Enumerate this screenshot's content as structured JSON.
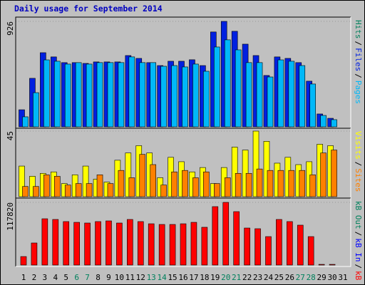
{
  "title": "Daily usage for September 2014",
  "separator": "/",
  "chart_data": [
    {
      "type": "bar",
      "ylim": [
        0,
        926
      ],
      "yticks": [
        926
      ],
      "extra_legend": [
        {
          "name": "Hits",
          "color": "#00805c"
        }
      ],
      "series": [
        {
          "name": "Files",
          "color": "#0020e0",
          "values": [
            150,
            426,
            651,
            614,
            564,
            564,
            557,
            570,
            570,
            570,
            626,
            601,
            564,
            538,
            576,
            576,
            589,
            538,
            833,
            926,
            839,
            726,
            626,
            451,
            614,
            601,
            564,
            401,
            113,
            75,
            0
          ]
        },
        {
          "name": "Pages",
          "color": "#00b8f8",
          "values": [
            88,
            300,
            588,
            576,
            551,
            564,
            551,
            564,
            564,
            564,
            614,
            564,
            564,
            532,
            538,
            526,
            551,
            488,
            701,
            764,
            676,
            564,
            564,
            438,
            588,
            576,
            538,
            376,
            100,
            63,
            0
          ]
        }
      ]
    },
    {
      "type": "bar",
      "ylim": [
        0,
        45
      ],
      "yticks": [
        45
      ],
      "extra_legend": [],
      "series": [
        {
          "name": "Visits",
          "color": "#ffff00",
          "values": [
            21,
            14,
            16,
            17,
            9,
            15,
            21,
            12,
            10,
            25,
            30,
            35,
            30,
            13,
            27,
            24,
            17,
            20,
            9,
            20,
            34,
            32,
            45,
            38,
            23,
            27,
            22,
            24,
            36,
            35,
            0
          ]
        },
        {
          "name": "Sites",
          "color": "#ff8000",
          "values": [
            7,
            7,
            15,
            14,
            8,
            9,
            9,
            15,
            9,
            18,
            13,
            29,
            22,
            8,
            17,
            18,
            13,
            17,
            9,
            13,
            16,
            16,
            19,
            18,
            18,
            18,
            18,
            15,
            30,
            32,
            0
          ]
        }
      ]
    },
    {
      "type": "bar",
      "ylim": [
        0,
        117820
      ],
      "yticks": [
        117820
      ],
      "extra_legend": [
        {
          "name": "kB Out",
          "color": "#00805c"
        },
        {
          "name": "kB In",
          "color": "#0000ff"
        }
      ],
      "categories": [
        "1",
        "2",
        "3",
        "4",
        "5",
        "6",
        "7",
        "8",
        "9",
        "10",
        "11",
        "12",
        "13",
        "14",
        "15",
        "16",
        "17",
        "18",
        "19",
        "20",
        "21",
        "22",
        "23",
        "24",
        "25",
        "26",
        "27",
        "28",
        "29",
        "30",
        "31"
      ],
      "category_colors": [
        "#000000",
        "#000000",
        "#000000",
        "#000000",
        "#000000",
        "#00805c",
        "#00805c",
        "#000000",
        "#000000",
        "#000000",
        "#000000",
        "#000000",
        "#00805c",
        "#00805c",
        "#000000",
        "#000000",
        "#000000",
        "#000000",
        "#000000",
        "#00805c",
        "#00805c",
        "#000000",
        "#000000",
        "#000000",
        "#000000",
        "#000000",
        "#00805c",
        "#00805c",
        "#000000",
        "#000000",
        "#000000"
      ],
      "series": [
        {
          "name": "kB F",
          "color": "#ff0000",
          "values": [
            16000,
            41500,
            87000,
            85700,
            81700,
            80300,
            79000,
            81700,
            83000,
            79000,
            85700,
            81700,
            77600,
            76300,
            76300,
            77600,
            80300,
            71000,
            109800,
            117820,
            100400,
            69600,
            68300,
            53500,
            85700,
            81700,
            75000,
            53500,
            1300,
            1300,
            0
          ]
        }
      ]
    }
  ]
}
